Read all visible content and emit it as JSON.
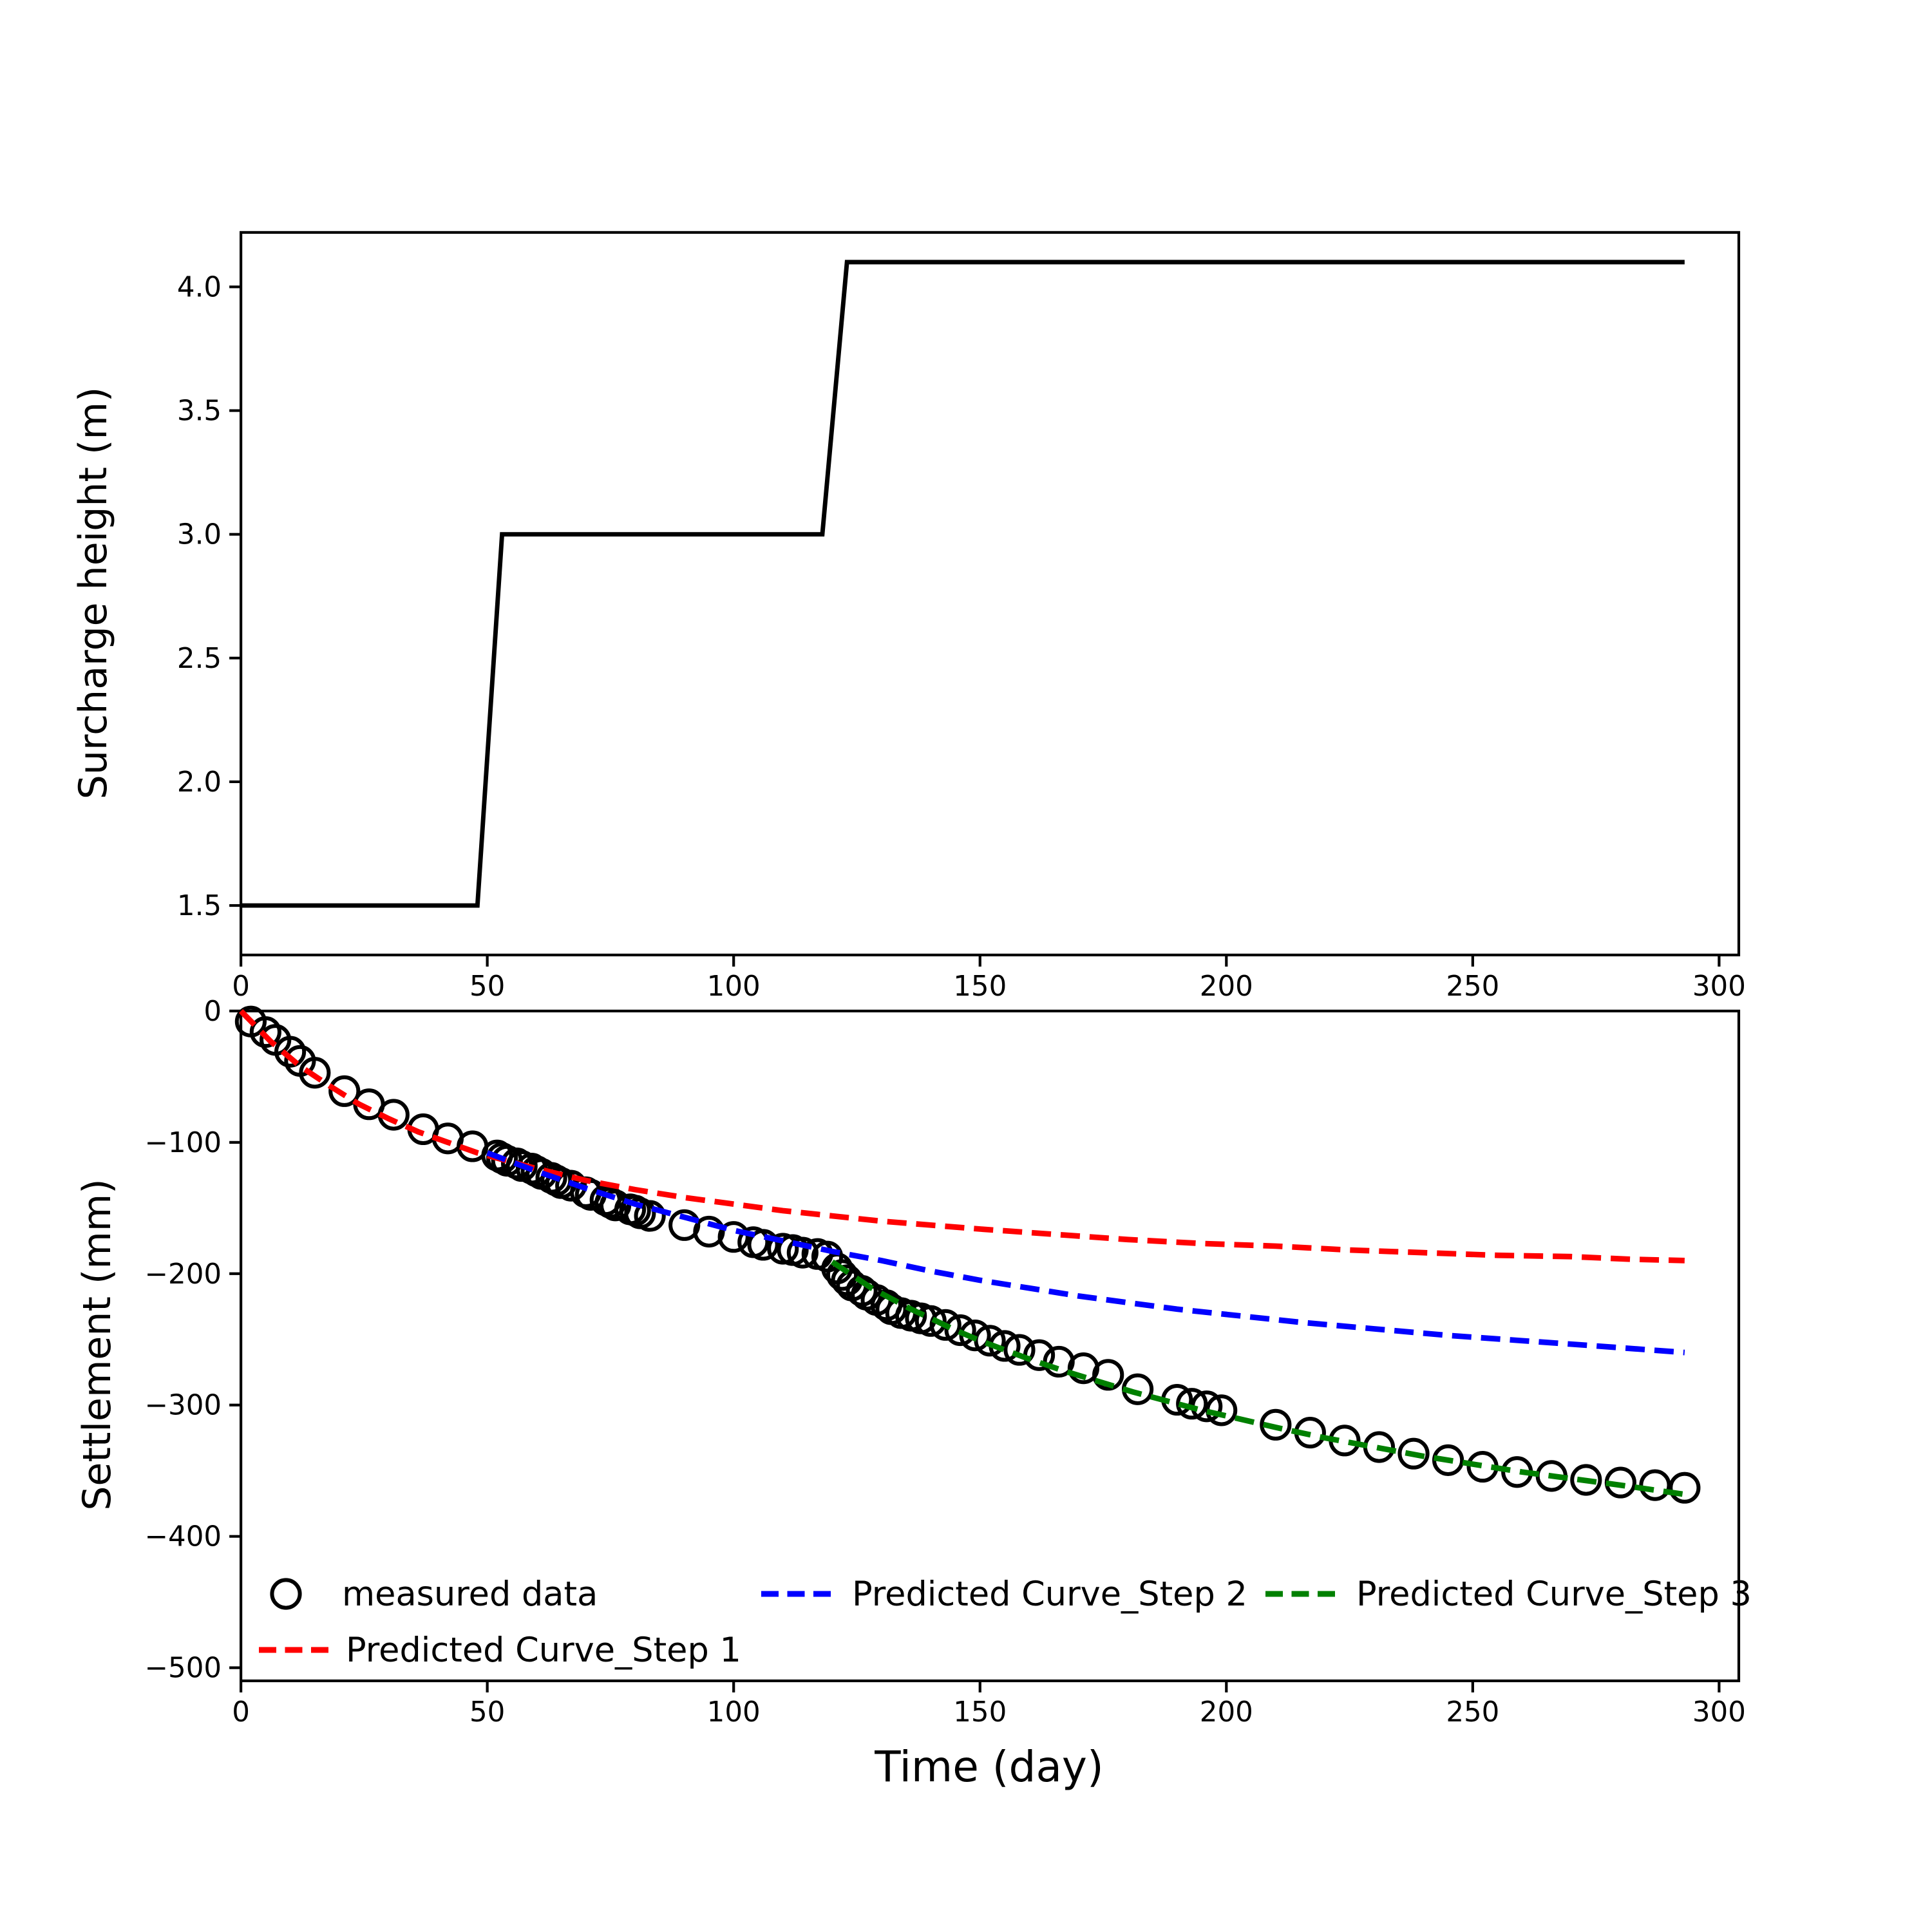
{
  "colors": {
    "measured": "#000000",
    "step1": "#ff0000",
    "step2": "#0000ff",
    "step3": "#008000",
    "axis": "#000000",
    "background": "#ffffff"
  },
  "chart_data": [
    {
      "type": "line",
      "title": "",
      "xlabel": "",
      "ylabel": "Surcharge height (m)",
      "xlim": [
        0,
        304
      ],
      "ylim": [
        1.3,
        4.22
      ],
      "grid": false,
      "xticks": [
        0,
        50,
        100,
        150,
        200,
        250,
        300
      ],
      "xtick_labels": [
        "0",
        "50",
        "100",
        "150",
        "200",
        "250",
        "300"
      ],
      "yticks": [
        1.5,
        2.0,
        2.5,
        3.0,
        3.5,
        4.0
      ],
      "ytick_labels": [
        "1.5",
        "2.0",
        "2.5",
        "3.0",
        "3.5",
        "4.0"
      ],
      "series": [
        {
          "name": "surcharge-height",
          "style": "solid",
          "color_key": "measured",
          "points": [
            [
              0,
              1.5
            ],
            [
              48,
              1.5
            ],
            [
              53,
              3.0
            ],
            [
              118,
              3.0
            ],
            [
              123,
              4.1
            ],
            [
              293,
              4.1
            ]
          ]
        }
      ]
    },
    {
      "type": "scatter",
      "title": "",
      "xlabel": "Time (day)",
      "ylabel": "Settlement (mm)",
      "xlim": [
        0,
        304
      ],
      "ylim": [
        -510,
        0
      ],
      "grid": false,
      "legend_position": "lower left, 3 columns, no frame",
      "xticks": [
        0,
        50,
        100,
        150,
        200,
        250,
        300
      ],
      "xtick_labels": [
        "0",
        "50",
        "100",
        "150",
        "200",
        "250",
        "300"
      ],
      "yticks": [
        0,
        -100,
        -200,
        -300,
        -400,
        -500
      ],
      "ytick_labels": [
        "0",
        "−100",
        "−200",
        "−300",
        "−400",
        "−500"
      ],
      "legend": {
        "measured": "measured data",
        "step1": "Predicted Curve_Step 1",
        "step2": "Predicted Curve_Step 2",
        "step3": "Predicted Curve_Step 3"
      },
      "measured": {
        "name": "measured-data",
        "marker": "open-circle",
        "color_key": "measured",
        "points": [
          [
            2,
            -8
          ],
          [
            5,
            -16
          ],
          [
            7,
            -22
          ],
          [
            10,
            -31
          ],
          [
            12,
            -38
          ],
          [
            15,
            -47
          ],
          [
            21,
            -61
          ],
          [
            26,
            -71
          ],
          [
            31,
            -79
          ],
          [
            37,
            -90
          ],
          [
            42,
            -97
          ],
          [
            47,
            -103
          ],
          [
            52,
            -110
          ],
          [
            53,
            -112
          ],
          [
            54,
            -114
          ],
          [
            56,
            -116
          ],
          [
            57,
            -118
          ],
          [
            59,
            -120
          ],
          [
            60,
            -122
          ],
          [
            61,
            -124
          ],
          [
            63,
            -127
          ],
          [
            64,
            -129
          ],
          [
            65,
            -131
          ],
          [
            67,
            -133
          ],
          [
            70,
            -138
          ],
          [
            71,
            -140
          ],
          [
            74,
            -144
          ],
          [
            75,
            -146
          ],
          [
            76,
            -148
          ],
          [
            79,
            -151
          ],
          [
            80,
            -152
          ],
          [
            81,
            -154
          ],
          [
            83,
            -156
          ],
          [
            90,
            -163
          ],
          [
            95,
            -168
          ],
          [
            100,
            -172
          ],
          [
            104,
            -176
          ],
          [
            106,
            -178
          ],
          [
            110,
            -181
          ],
          [
            112,
            -182
          ],
          [
            114,
            -184
          ],
          [
            117,
            -185
          ],
          [
            119,
            -187
          ],
          [
            121,
            -196
          ],
          [
            122,
            -201
          ],
          [
            123,
            -205
          ],
          [
            124,
            -209
          ],
          [
            126,
            -213
          ],
          [
            127,
            -216
          ],
          [
            129,
            -220
          ],
          [
            131,
            -224
          ],
          [
            132,
            -227
          ],
          [
            134,
            -230
          ],
          [
            136,
            -232
          ],
          [
            138,
            -234
          ],
          [
            140,
            -236
          ],
          [
            143,
            -239
          ],
          [
            146,
            -243
          ],
          [
            149,
            -247
          ],
          [
            152,
            -251
          ],
          [
            155,
            -255
          ],
          [
            158,
            -258
          ],
          [
            162,
            -262
          ],
          [
            166,
            -267
          ],
          [
            171,
            -272
          ],
          [
            176,
            -277
          ],
          [
            182,
            -288
          ],
          [
            190,
            -296
          ],
          [
            193,
            -299
          ],
          [
            196,
            -301
          ],
          [
            199,
            -304
          ],
          [
            210,
            -315
          ],
          [
            217,
            -321
          ],
          [
            224,
            -327
          ],
          [
            231,
            -332
          ],
          [
            238,
            -337
          ],
          [
            245,
            -342
          ],
          [
            252,
            -347
          ],
          [
            259,
            -351
          ],
          [
            266,
            -354
          ],
          [
            273,
            -357
          ],
          [
            280,
            -359
          ],
          [
            287,
            -361
          ],
          [
            293,
            -363
          ]
        ]
      },
      "series": [
        {
          "name": "predicted-curve-step-1",
          "style": "dashed",
          "color_key": "step1",
          "points": [
            [
              0,
              0
            ],
            [
              6,
              -23
            ],
            [
              12,
              -42
            ],
            [
              18,
              -57
            ],
            [
              24,
              -71
            ],
            [
              30,
              -82
            ],
            [
              36,
              -92
            ],
            [
              42,
              -100
            ],
            [
              48,
              -108
            ],
            [
              54,
              -114
            ],
            [
              60,
              -120
            ],
            [
              70,
              -129
            ],
            [
              80,
              -136
            ],
            [
              90,
              -142
            ],
            [
              100,
              -147
            ],
            [
              110,
              -152
            ],
            [
              120,
              -156
            ],
            [
              130,
              -160
            ],
            [
              140,
              -163
            ],
            [
              150,
              -166
            ],
            [
              165,
              -170
            ],
            [
              180,
              -174
            ],
            [
              195,
              -177
            ],
            [
              210,
              -179
            ],
            [
              225,
              -182
            ],
            [
              240,
              -184
            ],
            [
              255,
              -186
            ],
            [
              270,
              -187
            ],
            [
              282,
              -189
            ],
            [
              293,
              -190
            ]
          ]
        },
        {
          "name": "predicted-curve-step-2",
          "style": "dashed",
          "color_key": "step2",
          "points": [
            [
              50,
              -108
            ],
            [
              60,
              -122
            ],
            [
              70,
              -135
            ],
            [
              80,
              -147
            ],
            [
              90,
              -157
            ],
            [
              100,
              -167
            ],
            [
              110,
              -175
            ],
            [
              120,
              -183
            ],
            [
              130,
              -190
            ],
            [
              140,
              -198
            ],
            [
              150,
              -205
            ],
            [
              160,
              -211
            ],
            [
              170,
              -217
            ],
            [
              180,
              -222
            ],
            [
              190,
              -227
            ],
            [
              200,
              -231
            ],
            [
              215,
              -237
            ],
            [
              230,
              -242
            ],
            [
              245,
              -247
            ],
            [
              260,
              -251
            ],
            [
              275,
              -255
            ],
            [
              293,
              -260
            ]
          ]
        },
        {
          "name": "predicted-curve-step-3",
          "style": "dashed",
          "color_key": "step3",
          "points": [
            [
              120,
              -191
            ],
            [
              124,
              -201
            ],
            [
              128,
              -211
            ],
            [
              132,
              -219
            ],
            [
              136,
              -227
            ],
            [
              140,
              -234
            ],
            [
              145,
              -243
            ],
            [
              150,
              -251
            ],
            [
              155,
              -258
            ],
            [
              160,
              -265
            ],
            [
              167,
              -274
            ],
            [
              174,
              -282
            ],
            [
              181,
              -290
            ],
            [
              188,
              -297
            ],
            [
              195,
              -304
            ],
            [
              202,
              -310
            ],
            [
              210,
              -317
            ],
            [
              220,
              -325
            ],
            [
              230,
              -332
            ],
            [
              240,
              -339
            ],
            [
              250,
              -345
            ],
            [
              260,
              -351
            ],
            [
              270,
              -356
            ],
            [
              280,
              -361
            ],
            [
              293,
              -368
            ]
          ]
        }
      ]
    }
  ]
}
